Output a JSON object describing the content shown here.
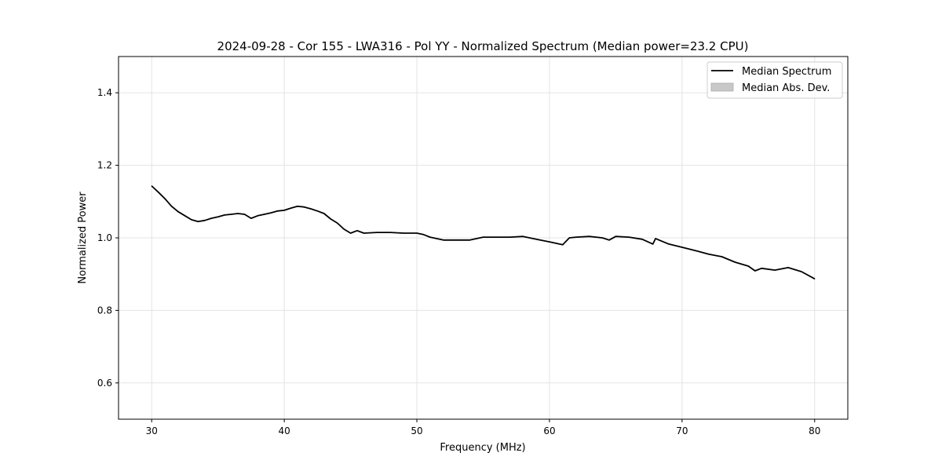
{
  "chart_data": {
    "type": "line",
    "title": "2024-09-28 - Cor 155 - LWA316 - Pol YY - Normalized Spectrum (Median power=23.2 CPU)",
    "xlabel": "Frequency (MHz)",
    "ylabel": "Normalized Power",
    "xlim": [
      27.5,
      82.5
    ],
    "ylim": [
      0.5,
      1.5
    ],
    "xticks": [
      30,
      40,
      50,
      60,
      70,
      80
    ],
    "xtick_labels": [
      "30",
      "40",
      "50",
      "60",
      "70",
      "80"
    ],
    "yticks": [
      0.6,
      0.8,
      1.0,
      1.2,
      1.4
    ],
    "ytick_labels": [
      "0.6",
      "0.8",
      "1.0",
      "1.2",
      "1.4"
    ],
    "grid": true,
    "legend_position": "top-right",
    "legend": [
      {
        "label": "Median Spectrum",
        "kind": "line",
        "color": "#000000"
      },
      {
        "label": "Median Abs. Dev.",
        "kind": "patch",
        "color": "#c8c8c8"
      }
    ],
    "series": [
      {
        "name": "Median Spectrum",
        "color": "#000000",
        "x": [
          30,
          30.5,
          31,
          31.5,
          32,
          32.5,
          33,
          33.5,
          34,
          34.5,
          35,
          35.5,
          36,
          36.5,
          37,
          37.5,
          38,
          38.5,
          39,
          39.5,
          40,
          40.5,
          41,
          41.5,
          42,
          42.5,
          43,
          43.5,
          44,
          44.5,
          45,
          45.5,
          46,
          47,
          48,
          49,
          50,
          50.5,
          51,
          52,
          53,
          54,
          55,
          56,
          57,
          58,
          59,
          60,
          61,
          61.5,
          62,
          63,
          64,
          64.5,
          65,
          66,
          67,
          67.8,
          68,
          69,
          70,
          71,
          72,
          73,
          74,
          75,
          75.5,
          76,
          77,
          78,
          79,
          80
        ],
        "y": [
          1.143,
          1.126,
          1.108,
          1.087,
          1.072,
          1.061,
          1.05,
          1.045,
          1.048,
          1.054,
          1.058,
          1.063,
          1.065,
          1.067,
          1.065,
          1.054,
          1.061,
          1.065,
          1.069,
          1.074,
          1.076,
          1.082,
          1.087,
          1.085,
          1.08,
          1.074,
          1.067,
          1.052,
          1.041,
          1.024,
          1.013,
          1.02,
          1.013,
          1.015,
          1.015,
          1.013,
          1.013,
          1.009,
          1.002,
          0.994,
          0.994,
          0.994,
          1.002,
          1.002,
          1.002,
          1.004,
          0.996,
          0.989,
          0.981,
          1.0,
          1.002,
          1.004,
          1.0,
          0.994,
          1.004,
          1.002,
          0.996,
          0.983,
          0.998,
          0.983,
          0.974,
          0.965,
          0.955,
          0.948,
          0.933,
          0.922,
          0.909,
          0.916,
          0.911,
          0.918,
          0.907,
          0.887
        ]
      }
    ]
  }
}
